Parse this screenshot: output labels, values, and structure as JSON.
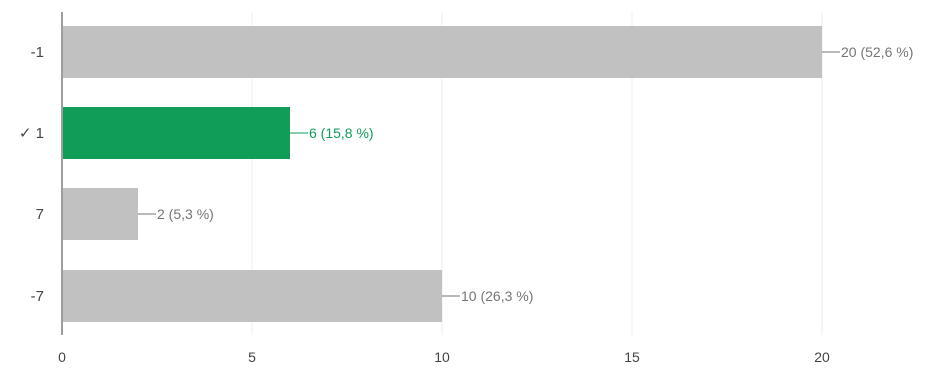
{
  "chart_data": {
    "type": "bar",
    "orientation": "horizontal",
    "categories": [
      {
        "prefix": "",
        "label": "-1",
        "correct": false
      },
      {
        "prefix": "✓",
        "label": "1",
        "correct": true
      },
      {
        "prefix": "",
        "label": "7",
        "correct": false
      },
      {
        "prefix": "",
        "label": "-7",
        "correct": false
      }
    ],
    "values": [
      20,
      6,
      2,
      10
    ],
    "data_labels": [
      "20 (52,6 %)",
      "6 (15,8 %)",
      "2 (5,3 %)",
      "10 (26,3 %)"
    ],
    "xlim": [
      0,
      20
    ],
    "xticks": [
      0,
      5,
      10,
      15,
      20
    ],
    "grid": true,
    "title": "",
    "xlabel": "",
    "ylabel": ""
  },
  "colors": {
    "bar_default": "#c1c1c1",
    "bar_correct": "#0f9d58",
    "label_default": "#757575",
    "label_correct": "#0f9d58",
    "axis": "#9e9e9e",
    "grid": "#ececec",
    "tick_text": "#444444"
  }
}
